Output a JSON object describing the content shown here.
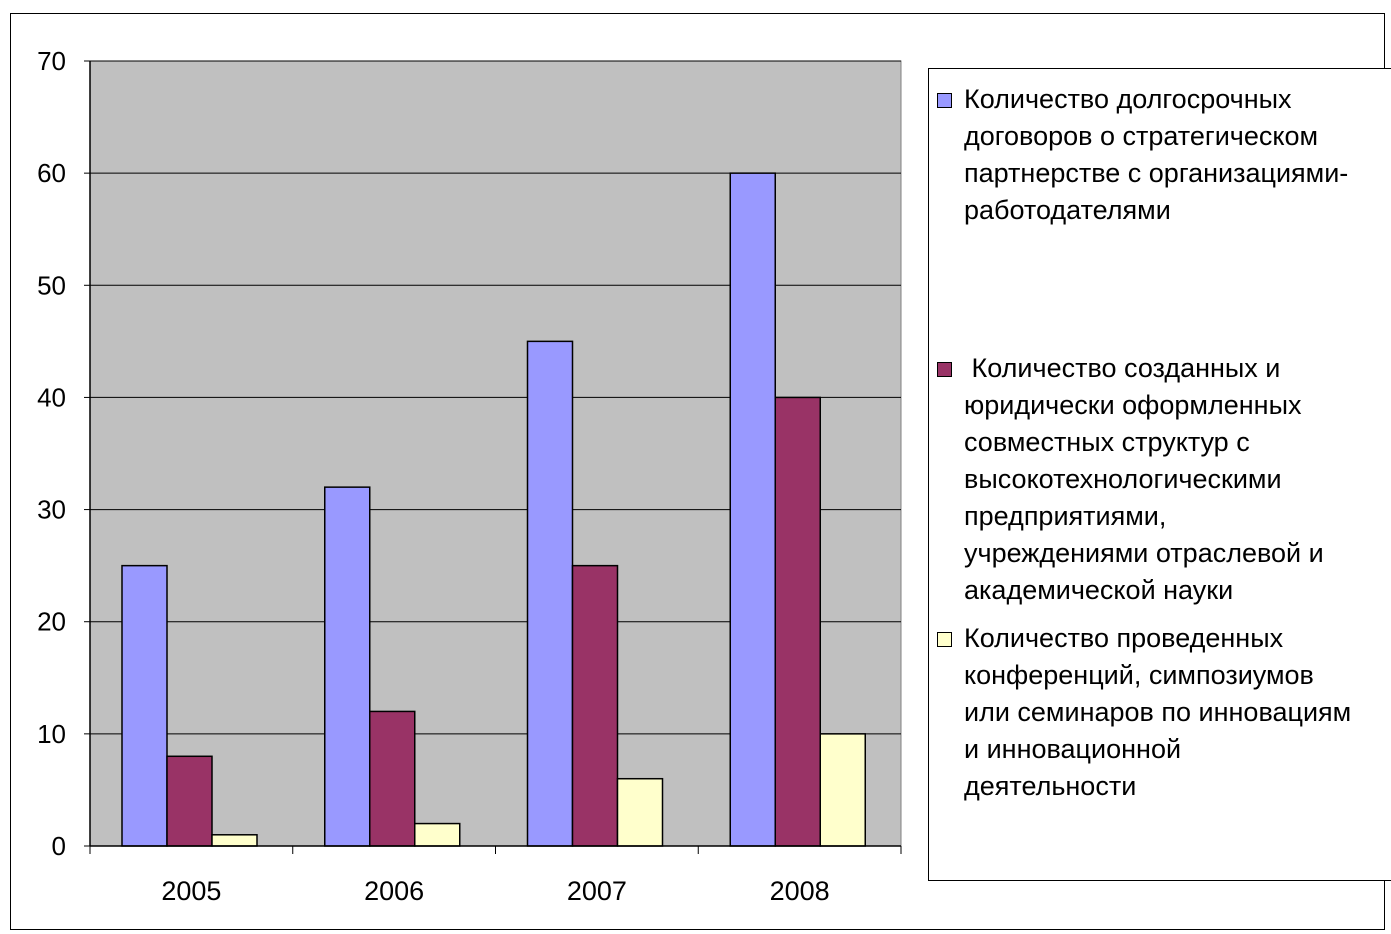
{
  "chart_data": {
    "type": "bar",
    "categories": [
      "2005",
      "2006",
      "2007",
      "2008"
    ],
    "series": [
      {
        "name": "Количество долгосрочных договоров о стратегическом партнерстве с организациями-работодателями",
        "values": [
          25,
          32,
          45,
          60
        ],
        "color": "#9999ff"
      },
      {
        "name": " Количество созданных и юридически оформленных совместных структур с высокотехнологическими предприятиями, учреждениями отраслевой и академической науки",
        "values": [
          8,
          12,
          25,
          40
        ],
        "color": "#993366"
      },
      {
        "name": "Количество проведенных конференций, симпозиумов или семинаров по инновациям и инновационной деятельности",
        "values": [
          1,
          2,
          6,
          10
        ],
        "color": "#ffffcc"
      }
    ],
    "yticks": [
      "0",
      "10",
      "20",
      "30",
      "40",
      "50",
      "60",
      "70"
    ],
    "ylim": [
      0,
      70
    ],
    "grid": true,
    "plot_background": "#c0c0c0",
    "legend_position": "right"
  },
  "legend": {
    "items": [
      {
        "label": "Количество долгосрочных\nдоговоров о стратегическом\nпартнерстве с организациями-\nработодателями"
      },
      {
        "label": " Количество созданных и\nюридически оформленных\nсовместных структур с\nвысокотехнологическими\nпредприятиями,\nучреждениями отраслевой и\nакадемической науки"
      },
      {
        "label": "Количество проведенных\nконференций, симпозиумов\nили семинаров по инновациям\nи инновационной\nдеятельности"
      }
    ]
  }
}
